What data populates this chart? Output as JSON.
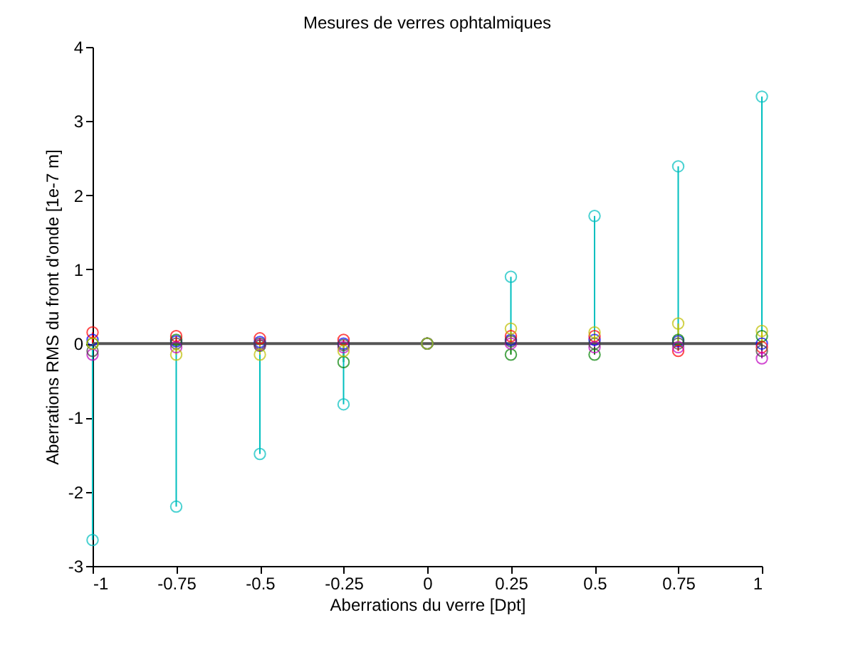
{
  "chart_data": {
    "type": "lollipop",
    "title": "Mesures de verres ophtalmiques",
    "xlabel": "Aberrations du verre [Dpt]",
    "ylabel": "Aberrations RMS du front d'onde [1e-7 m]",
    "x": [
      -1,
      -0.75,
      -0.5,
      -0.25,
      0,
      0.25,
      0.5,
      0.75,
      1
    ],
    "series": [
      {
        "color": "#0000ff",
        "values": [
          0.05,
          0.03,
          0.02,
          0.0,
          0,
          0.05,
          0.05,
          0.03,
          0.0
        ]
      },
      {
        "color": "#008000",
        "values": [
          0.0,
          0.05,
          -0.03,
          -0.25,
          0,
          -0.15,
          -0.15,
          0.05,
          0.1
        ]
      },
      {
        "color": "#ff0000",
        "values": [
          0.15,
          0.1,
          0.07,
          0.05,
          0,
          0.1,
          0.1,
          -0.1,
          -0.05
        ]
      },
      {
        "color": "#bf00bf",
        "values": [
          -0.15,
          -0.05,
          -0.02,
          -0.05,
          0,
          0.0,
          -0.05,
          -0.05,
          -0.2
        ]
      },
      {
        "color": "#404040",
        "values": [
          -0.1,
          0.0,
          0.0,
          -0.02,
          0,
          0.03,
          0.0,
          0.0,
          -0.1
        ]
      },
      {
        "color": "#00bfbf",
        "values": [
          -2.65,
          -2.2,
          -1.49,
          -0.82,
          0,
          0.9,
          1.72,
          2.39,
          3.33
        ]
      },
      {
        "color": "#bfbf00",
        "values": [
          0.0,
          -0.15,
          -0.15,
          -0.1,
          0,
          0.2,
          0.15,
          0.27,
          0.17
        ]
      }
    ],
    "xlim": [
      -1,
      1
    ],
    "xticks": [
      -1,
      -0.75,
      -0.5,
      -0.25,
      0,
      0.25,
      0.5,
      0.75,
      1
    ],
    "ylim": [
      -3,
      4
    ],
    "yticks": [
      -3,
      -2,
      -1,
      0,
      1,
      2,
      3,
      4
    ],
    "ref_lines": [
      {
        "axis": "y",
        "value": 0,
        "color": "#555555"
      }
    ],
    "marker": "circle",
    "grid": false,
    "legend": false
  }
}
